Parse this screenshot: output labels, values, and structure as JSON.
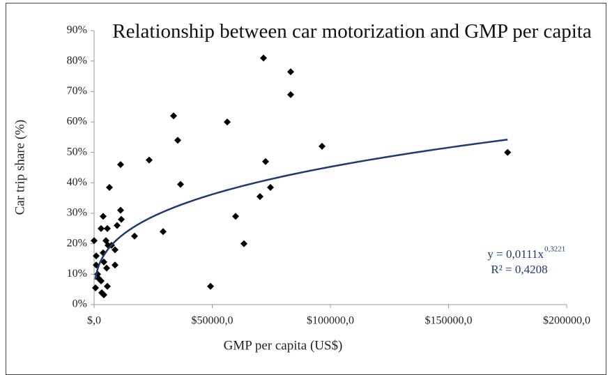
{
  "chart_data": {
    "type": "scatter",
    "title": "Relationship between car motorization and GMP per capita",
    "x_label": "GMP per capita (US$)",
    "y_label": "Car trip share (%)",
    "xlim": [
      0,
      200000
    ],
    "ylim": [
      0,
      0.9
    ],
    "xticks": [
      {
        "value": 0,
        "label": "$,0"
      },
      {
        "value": 50000,
        "label": "$50000,0"
      },
      {
        "value": 100000,
        "label": "$100000,0"
      },
      {
        "value": 150000,
        "label": "$150000,0"
      },
      {
        "value": 200000,
        "label": "$200000,0"
      }
    ],
    "yticks": [
      {
        "value": 0,
        "label": "0%"
      },
      {
        "value": 0.1,
        "label": "10%"
      },
      {
        "value": 0.2,
        "label": "20%"
      },
      {
        "value": 0.3,
        "label": "30%"
      },
      {
        "value": 0.4,
        "label": "40%"
      },
      {
        "value": 0.5,
        "label": "50%"
      },
      {
        "value": 0.6,
        "label": "60%"
      },
      {
        "value": 0.7,
        "label": "70%"
      },
      {
        "value": 0.8,
        "label": "80%"
      },
      {
        "value": 0.9,
        "label": "90%"
      }
    ],
    "color": "#000000",
    "x": [
      0,
      885,
      885,
      1475,
      590,
      2065,
      2950,
      3245,
      4130,
      2950,
      3835,
      3835,
      4130,
      5015,
      5605,
      5900,
      5310,
      5605,
      6490,
      7375,
      8850,
      8850,
      9735,
      11209,
      11504,
      11209,
      17109,
      23304,
      29204,
      35398,
      33628,
      36578,
      49263,
      56342,
      59882,
      63422,
      70206,
      71681,
      72566,
      74631,
      83186,
      83186,
      96460,
      175000
    ],
    "values": [
      0.21,
      0.16,
      0.13,
      0.1,
      0.055,
      0.085,
      0.078,
      0.039,
      0.032,
      0.25,
      0.29,
      0.17,
      0.14,
      0.21,
      0.25,
      0.195,
      0.12,
      0.06,
      0.385,
      0.195,
      0.13,
      0.18,
      0.26,
      0.31,
      0.28,
      0.46,
      0.225,
      0.475,
      0.24,
      0.54,
      0.62,
      0.395,
      0.06,
      0.6,
      0.29,
      0.2,
      0.355,
      0.81,
      0.47,
      0.385,
      0.765,
      0.69,
      0.52,
      0.5
    ],
    "trendline": {
      "type": "power",
      "coefficient": 0.0111,
      "exponent": 0.3221,
      "x_range": [
        500,
        175000
      ],
      "color": "#1f3a6e"
    },
    "equation_text": "y = 0,0111x",
    "equation_exponent": "0,3221",
    "r2_text": "R² = 0,4208"
  }
}
